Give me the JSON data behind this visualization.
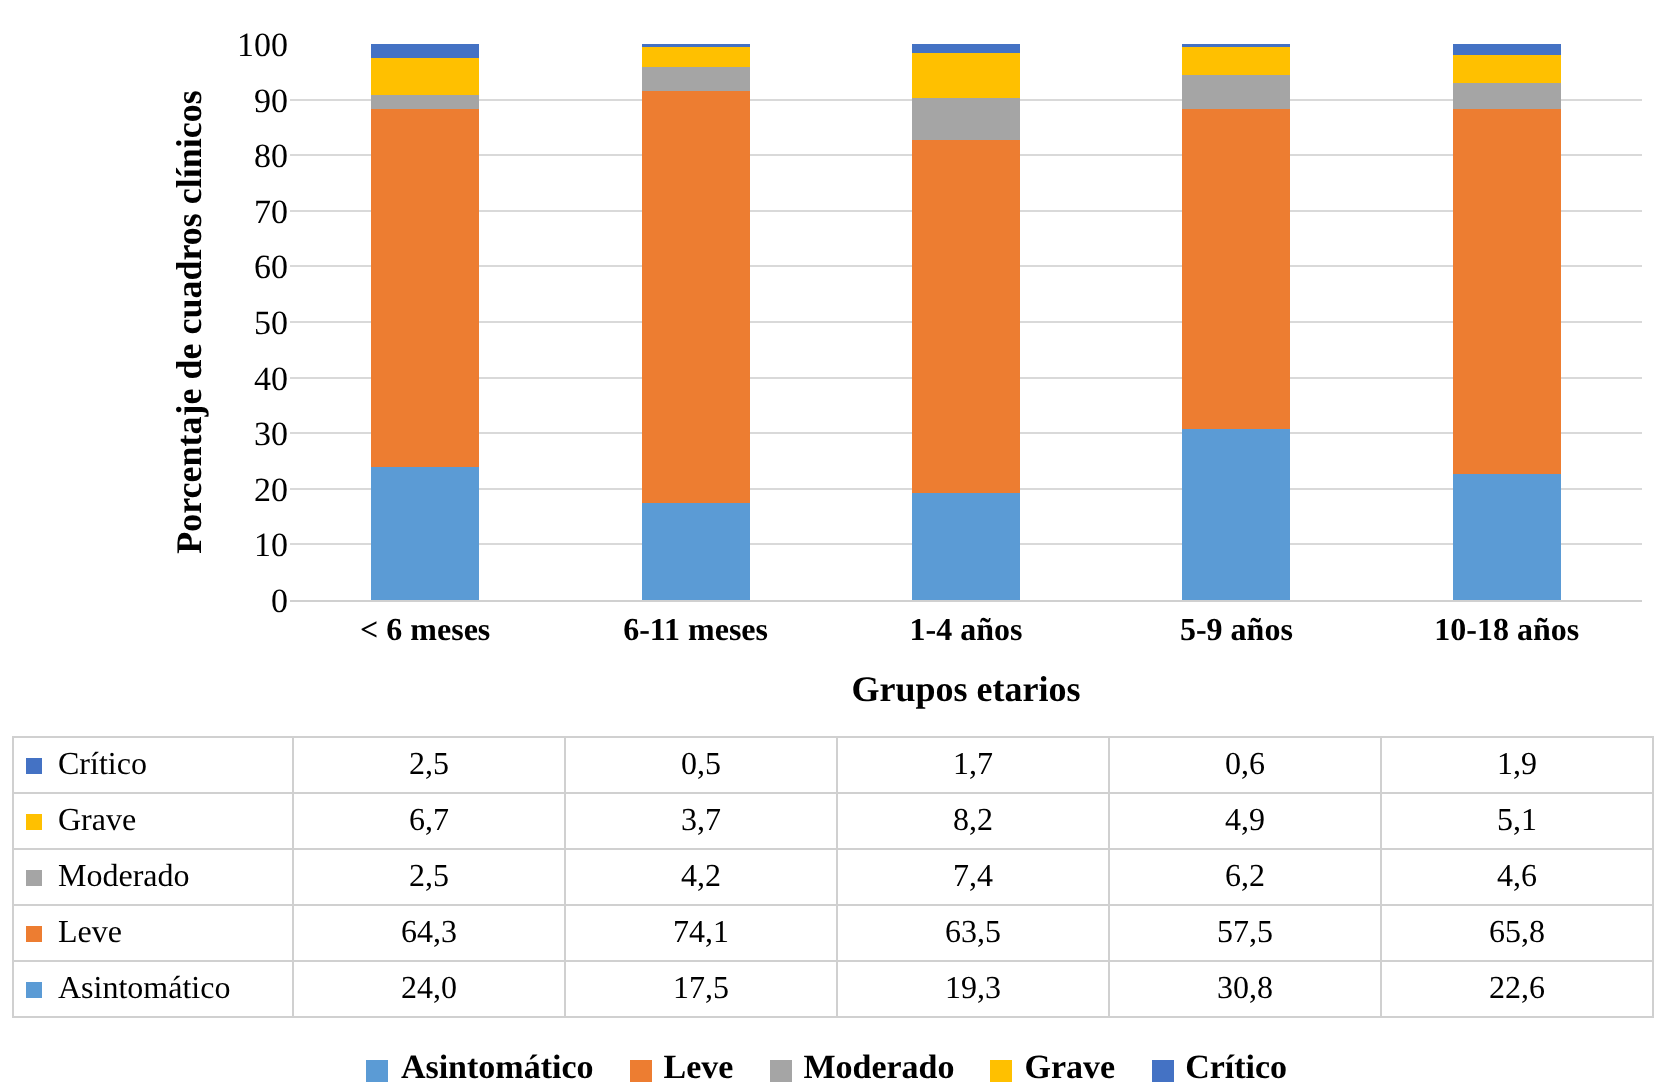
{
  "chart_data": {
    "type": "bar",
    "stacked": true,
    "xlabel": "Grupos etarios",
    "ylabel": "Porcentaje de cuadros clínicos",
    "categories": [
      "< 6 meses",
      "6-11 meses",
      "1-4 años",
      "5-9 años",
      "10-18 años"
    ],
    "ylim": [
      0,
      100
    ],
    "yticks": [
      0,
      10,
      20,
      30,
      40,
      50,
      60,
      70,
      80,
      90,
      100
    ],
    "grid": "y",
    "legend": "bottom",
    "series": [
      {
        "name": "Asintomático",
        "color": "#5b9bd5",
        "values": [
          24.0,
          17.5,
          19.3,
          30.8,
          22.6
        ],
        "value_labels": [
          "24,0",
          "17,5",
          "19,3",
          "30,8",
          "22,6"
        ]
      },
      {
        "name": "Leve",
        "color": "#ed7d31",
        "values": [
          64.3,
          74.1,
          63.5,
          57.5,
          65.8
        ],
        "value_labels": [
          "64,3",
          "74,1",
          "63,5",
          "57,5",
          "65,8"
        ]
      },
      {
        "name": "Moderado",
        "color": "#a5a5a5",
        "values": [
          2.5,
          4.2,
          7.4,
          6.2,
          4.6
        ],
        "value_labels": [
          "2,5",
          "4,2",
          "7,4",
          "6,2",
          "4,6"
        ]
      },
      {
        "name": "Grave",
        "color": "#ffc000",
        "values": [
          6.7,
          3.7,
          8.2,
          4.9,
          5.1
        ],
        "value_labels": [
          "6,7",
          "3,7",
          "8,2",
          "4,9",
          "5,1"
        ]
      },
      {
        "name": "Crítico",
        "color": "#4472c4",
        "values": [
          2.5,
          0.5,
          1.7,
          0.6,
          1.9
        ],
        "value_labels": [
          "2,5",
          "0,5",
          "1,7",
          "0,6",
          "1,9"
        ]
      }
    ]
  }
}
